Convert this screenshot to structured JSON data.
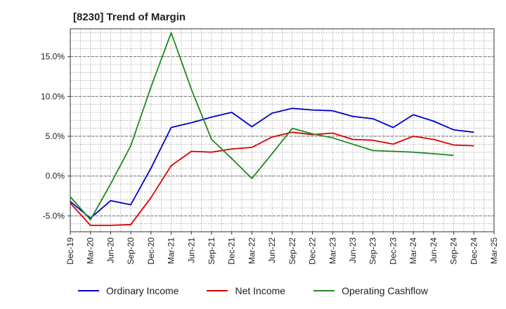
{
  "chart_data": {
    "type": "line",
    "title": "[8230]  Trend of Margin",
    "xlabel": "",
    "ylabel": "",
    "categories": [
      "Dec-19",
      "Mar-20",
      "Jun-20",
      "Sep-20",
      "Dec-20",
      "Mar-21",
      "Jun-21",
      "Sep-21",
      "Dec-21",
      "Mar-22",
      "Jun-22",
      "Sep-22",
      "Dec-22",
      "Mar-23",
      "Jun-23",
      "Sep-23",
      "Dec-23",
      "Mar-24",
      "Jun-24",
      "Sep-24",
      "Dec-24",
      "Mar-25"
    ],
    "ylim": [
      -7,
      18.5
    ],
    "yticks": [
      -5,
      0,
      5,
      10,
      15
    ],
    "ytick_labels": [
      "-5.0%",
      "0.0%",
      "5.0%",
      "10.0%",
      "15.0%"
    ],
    "grid": true,
    "legend_position": "bottom",
    "series": [
      {
        "name": "Ordinary Income",
        "color": "#0000cc",
        "values": [
          -3.2,
          -5.3,
          -3.1,
          -3.6,
          1.0,
          6.1,
          6.7,
          7.4,
          8.0,
          6.2,
          7.9,
          8.5,
          8.3,
          8.2,
          7.5,
          7.2,
          6.1,
          7.7,
          6.9,
          5.8,
          5.5,
          null
        ]
      },
      {
        "name": "Net Income",
        "color": "#dd0000",
        "values": [
          -3.4,
          -6.2,
          -6.2,
          -6.1,
          -2.7,
          1.3,
          3.1,
          3.0,
          3.4,
          3.6,
          4.9,
          5.5,
          5.2,
          5.4,
          4.6,
          4.5,
          4.0,
          5.0,
          4.6,
          3.9,
          3.8,
          null
        ]
      },
      {
        "name": "Operating Cashflow",
        "color": "#228822",
        "values": [
          -2.6,
          -5.5,
          -1.0,
          3.8,
          11.2,
          18.0,
          10.9,
          4.6,
          2.2,
          -0.3,
          2.8,
          6.0,
          5.3,
          4.8,
          4.0,
          3.2,
          3.1,
          3.0,
          2.8,
          2.6,
          null,
          null
        ]
      }
    ]
  }
}
